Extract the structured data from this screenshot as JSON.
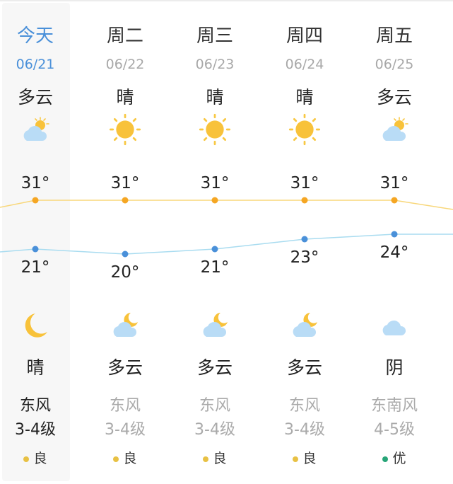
{
  "colors": {
    "accent": "#4a90d9",
    "high_line": "#f8d77a",
    "high_dot": "#f5a623",
    "low_line": "#a9dcf0",
    "low_dot": "#4a90d9",
    "aqi_good": "#e8c144",
    "aqi_excellent": "#27a578"
  },
  "days": [
    {
      "name": "今天",
      "date": "06/21",
      "day_cond": "多云",
      "day_icon": "partly-cloudy-day-icon",
      "high": "31°",
      "high_val": 31,
      "low": "21°",
      "low_val": 21,
      "night_icon": "moon-icon",
      "night_cond": "晴",
      "wind_dir": "东风",
      "wind_level": "3-4级",
      "aqi": "良",
      "aqi_level": "good"
    },
    {
      "name": "周二",
      "date": "06/22",
      "day_cond": "晴",
      "day_icon": "sun-icon",
      "high": "31°",
      "high_val": 31,
      "low": "20°",
      "low_val": 20,
      "night_icon": "partly-cloudy-night-icon",
      "night_cond": "多云",
      "wind_dir": "东风",
      "wind_level": "3-4级",
      "aqi": "良",
      "aqi_level": "good"
    },
    {
      "name": "周三",
      "date": "06/23",
      "day_cond": "晴",
      "day_icon": "sun-icon",
      "high": "31°",
      "high_val": 31,
      "low": "21°",
      "low_val": 21,
      "night_icon": "partly-cloudy-night-icon",
      "night_cond": "多云",
      "wind_dir": "东风",
      "wind_level": "3-4级",
      "aqi": "良",
      "aqi_level": "good"
    },
    {
      "name": "周四",
      "date": "06/24",
      "day_cond": "晴",
      "day_icon": "sun-icon",
      "high": "31°",
      "high_val": 31,
      "low": "23°",
      "low_val": 23,
      "night_icon": "partly-cloudy-night-icon",
      "night_cond": "多云",
      "wind_dir": "东风",
      "wind_level": "3-4级",
      "aqi": "良",
      "aqi_level": "good"
    },
    {
      "name": "周五",
      "date": "06/25",
      "day_cond": "多云",
      "day_icon": "partly-cloudy-day-icon",
      "high": "31°",
      "high_val": 31,
      "low": "24°",
      "low_val": 24,
      "night_icon": "cloud-icon",
      "night_cond": "阴",
      "wind_dir": "东南风",
      "wind_level": "4-5级",
      "aqi": "优",
      "aqi_level": "excellent"
    }
  ]
}
